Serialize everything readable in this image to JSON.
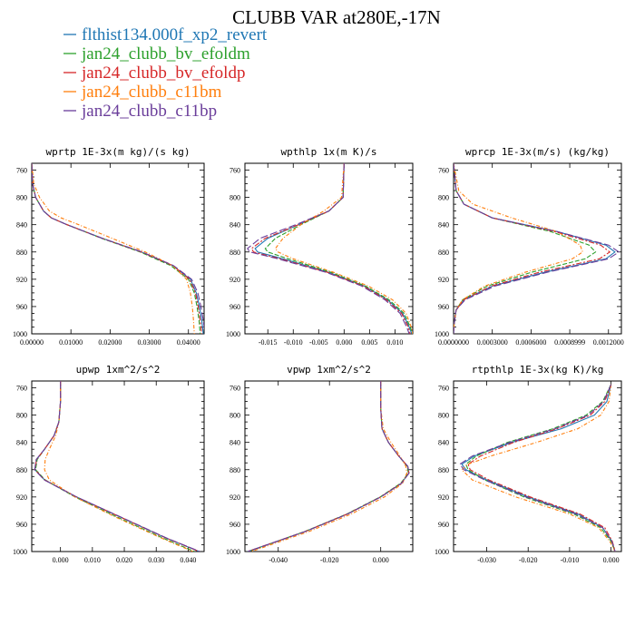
{
  "figure": {
    "title": "CLUBB VAR at280E,-17N"
  },
  "legend": [
    {
      "name": "flthist134.000f_xp2_revert",
      "color": "#1f77b4"
    },
    {
      "name": "jan24_clubb_bv_efoldm",
      "color": "#2ca02c"
    },
    {
      "name": "jan24_clubb_bv_efoldp",
      "color": "#d62728"
    },
    {
      "name": "jan24_clubb_c11bm",
      "color": "#ff7f0e"
    },
    {
      "name": "jan24_clubb_c11bp",
      "color": "#6a3d9a"
    }
  ],
  "chart_data": [
    {
      "type": "line",
      "title": "wprtp  1E-3x(m kg)/(s kg)",
      "xlim": [
        0,
        0.044
      ],
      "ylim": [
        1000,
        750
      ],
      "y_ticks": [
        760,
        800,
        840,
        880,
        920,
        960,
        1000
      ],
      "x_ticks": [
        0,
        0.01,
        0.02,
        0.03,
        0.04
      ],
      "x_tick_labels": [
        "0.00000",
        "0.01000",
        "0.02000",
        "0.03000",
        "0.04000"
      ],
      "y": [
        750,
        780,
        800,
        820,
        830,
        840,
        860,
        880,
        900,
        920,
        940,
        960,
        980,
        1000
      ],
      "series": [
        {
          "values": [
            0,
            0.0002,
            0.001,
            0.003,
            0.005,
            0.009,
            0.018,
            0.028,
            0.036,
            0.0405,
            0.042,
            0.0428,
            0.0434,
            0.0438
          ]
        },
        {
          "values": [
            0,
            0.0002,
            0.001,
            0.003,
            0.005,
            0.009,
            0.0178,
            0.0277,
            0.0355,
            0.04,
            0.0415,
            0.0422,
            0.0427,
            0.043
          ]
        },
        {
          "values": [
            0,
            0.0002,
            0.001,
            0.003,
            0.005,
            0.009,
            0.018,
            0.028,
            0.036,
            0.0403,
            0.0418,
            0.0425,
            0.043,
            0.0434
          ]
        },
        {
          "values": [
            0,
            0.0005,
            0.002,
            0.0045,
            0.0075,
            0.012,
            0.0205,
            0.029,
            0.036,
            0.0395,
            0.0405,
            0.041,
            0.0413,
            0.0415
          ]
        },
        {
          "values": [
            0,
            0.0002,
            0.001,
            0.003,
            0.005,
            0.009,
            0.018,
            0.0282,
            0.0362,
            0.0408,
            0.0424,
            0.0432,
            0.0438,
            0.0442
          ]
        }
      ]
    },
    {
      "type": "line",
      "title": "wpthlp  1x(m K)/s",
      "xlim": [
        -0.0195,
        0.0135
      ],
      "ylim": [
        1000,
        750
      ],
      "y_ticks": [
        760,
        800,
        840,
        880,
        920,
        960,
        1000
      ],
      "x_ticks": [
        -0.015,
        -0.01,
        -0.005,
        0,
        0.005,
        0.01
      ],
      "x_tick_labels": [
        "-0.015",
        "-0.010",
        "-0.005",
        "0.000",
        "0.005",
        "0.010"
      ],
      "y": [
        750,
        800,
        820,
        840,
        860,
        875,
        880,
        890,
        910,
        930,
        950,
        970,
        990,
        1000
      ],
      "series": [
        {
          "values": [
            0,
            -0.0002,
            -0.003,
            -0.009,
            -0.015,
            -0.0175,
            -0.017,
            -0.012,
            -0.003,
            0.004,
            0.0085,
            0.0115,
            0.0128,
            0.0133
          ]
        },
        {
          "values": [
            0,
            -0.0002,
            -0.003,
            -0.0085,
            -0.0135,
            -0.0155,
            -0.015,
            -0.011,
            -0.0025,
            0.0042,
            0.0088,
            0.0118,
            0.013,
            0.0135
          ]
        },
        {
          "values": [
            0,
            -0.0002,
            -0.003,
            -0.009,
            -0.0155,
            -0.0182,
            -0.0178,
            -0.0125,
            -0.0032,
            0.0038,
            0.0083,
            0.0113,
            0.0126,
            0.013
          ]
        },
        {
          "values": [
            0,
            -0.0005,
            -0.004,
            -0.0085,
            -0.012,
            -0.0135,
            -0.013,
            -0.01,
            -0.002,
            0.0048,
            0.0095,
            0.0122,
            0.0132,
            0.0135
          ]
        },
        {
          "values": [
            0,
            -0.0002,
            -0.003,
            -0.0095,
            -0.0165,
            -0.019,
            -0.0185,
            -0.013,
            -0.0035,
            0.0035,
            0.008,
            0.011,
            0.0123,
            0.0128
          ]
        }
      ]
    },
    {
      "type": "line",
      "title": "wprcp  1E-3x(m/s) (kg/kg)",
      "xlim": [
        0,
        0.0013
      ],
      "ylim": [
        1000,
        750
      ],
      "y_ticks": [
        760,
        800,
        840,
        880,
        920,
        960,
        1000
      ],
      "x_ticks": [
        0,
        0.0003,
        0.0006,
        0.0009,
        0.0012
      ],
      "x_tick_labels": [
        "0.0000000",
        "0.0003000",
        "0.0006000",
        "0.0008999",
        "0.0012000"
      ],
      "y": [
        750,
        790,
        810,
        830,
        850,
        870,
        880,
        890,
        910,
        930,
        950,
        965,
        985,
        1000
      ],
      "series": [
        {
          "values": [
            0,
            2e-05,
            8e-05,
            0.0003,
            0.0008,
            0.00118,
            0.00125,
            0.00118,
            0.0007,
            0.0003,
            8e-05,
            2e-05,
            5e-06,
            0
          ]
        },
        {
          "values": [
            0,
            2e-05,
            8e-05,
            0.0003,
            0.00075,
            0.00105,
            0.0011,
            0.00102,
            0.0006,
            0.00026,
            7e-05,
            2e-05,
            5e-06,
            0
          ]
        },
        {
          "values": [
            0,
            2e-05,
            8e-05,
            0.0003,
            0.00078,
            0.00114,
            0.00121,
            0.00113,
            0.00066,
            0.00029,
            8e-05,
            2e-05,
            5e-06,
            0
          ]
        },
        {
          "values": [
            0,
            4e-05,
            0.00015,
            0.00045,
            0.0008,
            0.00098,
            0.001,
            0.00092,
            0.00055,
            0.00024,
            7e-05,
            2e-05,
            5e-06,
            0
          ]
        },
        {
          "values": [
            0,
            2e-05,
            8e-05,
            0.0003,
            0.0008,
            0.0012,
            0.00128,
            0.0012,
            0.00072,
            0.00032,
            9e-05,
            2e-05,
            5e-06,
            0
          ]
        }
      ]
    },
    {
      "type": "line",
      "title": "upwp  1xm^2/s^2",
      "xlim": [
        -0.009,
        0.045
      ],
      "ylim": [
        1000,
        750
      ],
      "y_ticks": [
        760,
        800,
        840,
        880,
        920,
        960,
        1000
      ],
      "x_ticks": [
        0,
        0.01,
        0.02,
        0.03,
        0.04
      ],
      "x_tick_labels": [
        "0.000",
        "0.010",
        "0.020",
        "0.030",
        "0.040"
      ],
      "y": [
        750,
        780,
        810,
        830,
        850,
        865,
        880,
        895,
        920,
        950,
        980,
        1000
      ],
      "series": [
        {
          "values": [
            0,
            0,
            -0.0005,
            -0.002,
            -0.005,
            -0.0075,
            -0.008,
            -0.005,
            0.005,
            0.019,
            0.033,
            0.0435
          ]
        },
        {
          "values": [
            0,
            0,
            -0.0005,
            -0.002,
            -0.005,
            -0.0073,
            -0.0078,
            -0.0048,
            0.0045,
            0.018,
            0.032,
            0.042
          ]
        },
        {
          "values": [
            0,
            0,
            -0.0005,
            -0.002,
            -0.005,
            -0.0075,
            -0.008,
            -0.005,
            0.005,
            0.019,
            0.033,
            0.0435
          ]
        },
        {
          "values": [
            0,
            0,
            -0.0005,
            -0.0015,
            -0.0035,
            -0.0048,
            -0.005,
            -0.0035,
            0.0045,
            0.0175,
            0.0315,
            0.0415
          ]
        },
        {
          "values": [
            0,
            0,
            -0.0005,
            -0.002,
            -0.005,
            -0.0076,
            -0.0081,
            -0.0051,
            0.005,
            0.0192,
            0.0332,
            0.0437
          ]
        }
      ]
    },
    {
      "type": "line",
      "title": "vpwp  1xm^2/s^2",
      "xlim": [
        -0.053,
        0.0125
      ],
      "ylim": [
        1000,
        750
      ],
      "y_ticks": [
        760,
        800,
        840,
        880,
        920,
        960,
        1000
      ],
      "x_ticks": [
        -0.04,
        -0.02,
        0
      ],
      "x_tick_labels": [
        "-0.040",
        "-0.020",
        "0.000"
      ],
      "y": [
        750,
        790,
        820,
        840,
        860,
        875,
        885,
        900,
        920,
        945,
        970,
        1000
      ],
      "series": [
        {
          "values": [
            0,
            0,
            0.0005,
            0.003,
            0.007,
            0.0105,
            0.011,
            0.008,
            0.0,
            -0.013,
            -0.029,
            -0.052
          ]
        },
        {
          "values": [
            0,
            0,
            0.0005,
            0.003,
            0.007,
            0.0103,
            0.0108,
            0.0078,
            -0.0002,
            -0.0132,
            -0.0292,
            -0.0515
          ]
        },
        {
          "values": [
            0,
            0,
            0.0005,
            0.003,
            0.007,
            0.0105,
            0.011,
            0.008,
            0.0,
            -0.013,
            -0.029,
            -0.052
          ]
        },
        {
          "values": [
            0,
            0,
            0.001,
            0.004,
            0.0075,
            0.0098,
            0.0102,
            0.0085,
            0.0015,
            -0.0115,
            -0.0275,
            -0.0505
          ]
        },
        {
          "values": [
            0,
            0,
            0.0005,
            0.003,
            0.007,
            0.0106,
            0.0111,
            0.0081,
            0.0001,
            -0.0129,
            -0.0289,
            -0.0518
          ]
        }
      ]
    },
    {
      "type": "line",
      "title": "rtpthlp  1E-3x(kg K)/kg",
      "xlim": [
        -0.038,
        0.0025
      ],
      "ylim": [
        1000,
        750
      ],
      "y_ticks": [
        760,
        800,
        840,
        880,
        920,
        960,
        1000
      ],
      "x_ticks": [
        -0.03,
        -0.02,
        -0.01,
        0
      ],
      "x_tick_labels": [
        "-0.030",
        "-0.020",
        "-0.010",
        "0.000"
      ],
      "y": [
        755,
        780,
        800,
        820,
        840,
        860,
        872,
        880,
        895,
        920,
        945,
        965,
        985,
        1000
      ],
      "series": [
        {
          "values": [
            0,
            -0.001,
            -0.004,
            -0.012,
            -0.024,
            -0.033,
            -0.036,
            -0.035,
            -0.03,
            -0.02,
            -0.008,
            -0.002,
            0.0002,
            0.001
          ]
        },
        {
          "values": [
            0,
            -0.002,
            -0.006,
            -0.014,
            -0.025,
            -0.0325,
            -0.035,
            -0.0345,
            -0.0305,
            -0.021,
            -0.009,
            -0.0025,
            0,
            0.001
          ]
        },
        {
          "values": [
            0,
            -0.0015,
            -0.005,
            -0.013,
            -0.0235,
            -0.0315,
            -0.0345,
            -0.034,
            -0.0295,
            -0.0195,
            -0.0075,
            -0.0015,
            0.0003,
            0.001
          ]
        },
        {
          "values": [
            0,
            -0.0005,
            -0.0025,
            -0.008,
            -0.018,
            -0.029,
            -0.0345,
            -0.036,
            -0.0335,
            -0.023,
            -0.01,
            -0.003,
            -0.0003,
            0.001
          ]
        },
        {
          "values": [
            0,
            -0.0018,
            -0.0055,
            -0.0135,
            -0.0245,
            -0.0335,
            -0.0365,
            -0.0355,
            -0.0305,
            -0.0205,
            -0.0085,
            -0.002,
            0.0002,
            0.001
          ]
        }
      ]
    }
  ]
}
